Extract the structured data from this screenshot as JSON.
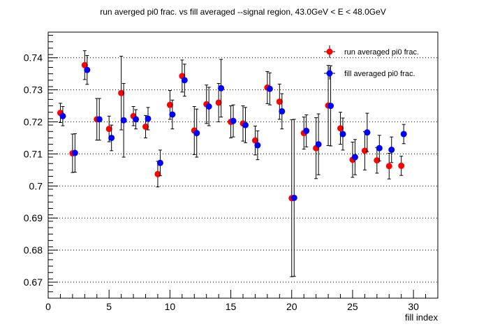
{
  "chart_data": {
    "type": "scatter",
    "title": "run averged pi0 frac. vs fill averaged --signal region, 43.0GeV < E < 48.0GeV",
    "xlabel": "fill index",
    "ylabel": "",
    "xlim": [
      0,
      32
    ],
    "ylim": [
      0.665,
      0.748
    ],
    "x_ticks": [
      0,
      5,
      10,
      15,
      20,
      25,
      30
    ],
    "x_tick_labels": [
      "0",
      "5",
      "10",
      "15",
      "20",
      "25",
      "30"
    ],
    "y_ticks": [
      0.67,
      0.68,
      0.69,
      0.7,
      0.71,
      0.72,
      0.73,
      0.74
    ],
    "y_tick_labels": [
      "0.67",
      "0.68",
      "0.69",
      "0.7",
      "0.71",
      "0.72",
      "0.73",
      "0.74"
    ],
    "grid": "horizontal dotted",
    "legend_position": "top-right",
    "series": [
      {
        "name": "run averaged pi0 frac.",
        "color": "#ff0000",
        "points": [
          {
            "x": 1.0,
            "y": 0.7228,
            "err": 0.003
          },
          {
            "x": 2.0,
            "y": 0.7102,
            "err": 0.006
          },
          {
            "x": 3.0,
            "y": 0.7377,
            "err": 0.0045
          },
          {
            "x": 4.0,
            "y": 0.7208,
            "err": 0.0065
          },
          {
            "x": 5.0,
            "y": 0.7178,
            "err": 0.004
          },
          {
            "x": 6.0,
            "y": 0.729,
            "err": 0.0115
          },
          {
            "x": 7.0,
            "y": 0.7218,
            "err": 0.003
          },
          {
            "x": 8.0,
            "y": 0.7185,
            "err": 0.0035
          },
          {
            "x": 9.0,
            "y": 0.7037,
            "err": 0.004
          },
          {
            "x": 10.0,
            "y": 0.7253,
            "err": 0.0045
          },
          {
            "x": 11.0,
            "y": 0.7343,
            "err": 0.005
          },
          {
            "x": 12.0,
            "y": 0.7173,
            "err": 0.0075
          },
          {
            "x": 13.0,
            "y": 0.7255,
            "err": 0.006
          },
          {
            "x": 14.0,
            "y": 0.726,
            "err": 0.006
          },
          {
            "x": 15.0,
            "y": 0.72,
            "err": 0.005
          },
          {
            "x": 16.0,
            "y": 0.7195,
            "err": 0.0055
          },
          {
            "x": 17.0,
            "y": 0.7142,
            "err": 0.0045
          },
          {
            "x": 18.0,
            "y": 0.7307,
            "err": 0.005
          },
          {
            "x": 19.0,
            "y": 0.7263,
            "err": 0.0055
          },
          {
            "x": 20.0,
            "y": 0.6962,
            "err": 0.0245
          },
          {
            "x": 21.0,
            "y": 0.7165,
            "err": 0.005
          },
          {
            "x": 22.0,
            "y": 0.7118,
            "err": 0.0095
          },
          {
            "x": 23.0,
            "y": 0.7251,
            "err": 0.0125
          },
          {
            "x": 24.0,
            "y": 0.718,
            "err": 0.005
          },
          {
            "x": 25.0,
            "y": 0.7082,
            "err": 0.0055
          },
          {
            "x": 26.0,
            "y": 0.711,
            "err": 0.006
          },
          {
            "x": 27.0,
            "y": 0.708,
            "err": 0.004
          },
          {
            "x": 28.0,
            "y": 0.7062,
            "err": 0.004
          },
          {
            "x": 29.0,
            "y": 0.7063,
            "err": 0.003
          }
        ]
      },
      {
        "name": "fill averaged pi0 frac.",
        "color": "#0000ff",
        "points": [
          {
            "x": 1.2,
            "y": 0.7218,
            "err": 0.003
          },
          {
            "x": 2.2,
            "y": 0.7103,
            "err": 0.006
          },
          {
            "x": 3.2,
            "y": 0.7362,
            "err": 0.0045
          },
          {
            "x": 4.2,
            "y": 0.7208,
            "err": 0.0065
          },
          {
            "x": 5.2,
            "y": 0.715,
            "err": 0.004
          },
          {
            "x": 6.2,
            "y": 0.7205,
            "err": 0.0115
          },
          {
            "x": 7.2,
            "y": 0.7208,
            "err": 0.003
          },
          {
            "x": 8.2,
            "y": 0.721,
            "err": 0.0035
          },
          {
            "x": 9.2,
            "y": 0.7072,
            "err": 0.004
          },
          {
            "x": 10.2,
            "y": 0.7223,
            "err": 0.0045
          },
          {
            "x": 11.2,
            "y": 0.733,
            "err": 0.005
          },
          {
            "x": 12.2,
            "y": 0.7165,
            "err": 0.0075
          },
          {
            "x": 13.2,
            "y": 0.7248,
            "err": 0.006
          },
          {
            "x": 14.2,
            "y": 0.7305,
            "err": 0.009
          },
          {
            "x": 15.2,
            "y": 0.7203,
            "err": 0.005
          },
          {
            "x": 16.2,
            "y": 0.719,
            "err": 0.0055
          },
          {
            "x": 17.2,
            "y": 0.7127,
            "err": 0.0045
          },
          {
            "x": 18.2,
            "y": 0.7303,
            "err": 0.005
          },
          {
            "x": 19.2,
            "y": 0.7233,
            "err": 0.0055
          },
          {
            "x": 20.2,
            "y": 0.6963,
            "err": 0.0245
          },
          {
            "x": 21.2,
            "y": 0.7172,
            "err": 0.005
          },
          {
            "x": 22.2,
            "y": 0.713,
            "err": 0.0095
          },
          {
            "x": 23.2,
            "y": 0.725,
            "err": 0.0125
          },
          {
            "x": 24.2,
            "y": 0.7162,
            "err": 0.005
          },
          {
            "x": 25.2,
            "y": 0.709,
            "err": 0.0055
          },
          {
            "x": 26.2,
            "y": 0.7167,
            "err": 0.006
          },
          {
            "x": 27.2,
            "y": 0.7118,
            "err": 0.004
          },
          {
            "x": 28.2,
            "y": 0.7113,
            "err": 0.004
          },
          {
            "x": 29.2,
            "y": 0.7162,
            "err": 0.003
          }
        ]
      }
    ]
  }
}
